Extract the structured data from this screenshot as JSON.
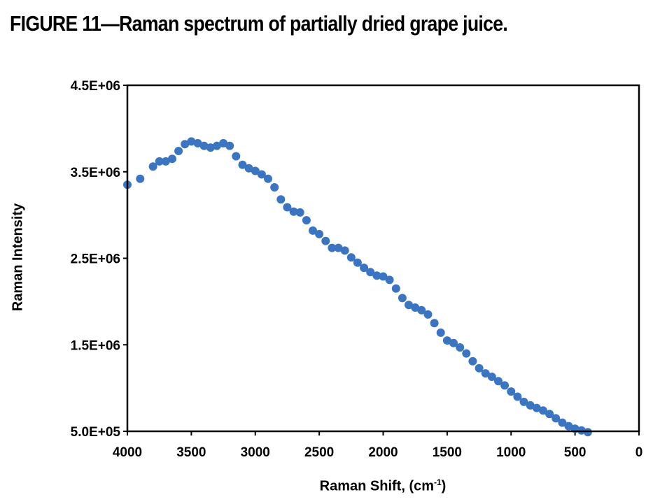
{
  "figure_title": "FIGURE 11—Raman spectrum of partially dried grape juice.",
  "chart_data": {
    "type": "scatter",
    "title": "FIGURE 11—Raman spectrum of partially dried grape juice.",
    "xlabel": "Raman Shift, (cm-1)",
    "xlabel_main": "Raman Shift, (cm",
    "xlabel_sup": "-1",
    "xlabel_close": ")",
    "ylabel": "Raman Intensity",
    "xlim": [
      4000,
      0
    ],
    "ylim": [
      500000,
      4500000
    ],
    "x_axis_reversed": true,
    "grid": false,
    "marker_color": "#3a75c4",
    "x_ticks": [
      "4000",
      "3500",
      "3000",
      "2500",
      "2000",
      "1500",
      "1000",
      "500",
      "0"
    ],
    "x_tick_values": [
      4000,
      3500,
      3000,
      2500,
      2000,
      1500,
      1000,
      500,
      0
    ],
    "y_ticks": [
      "5.0E+05",
      "1.5E+06",
      "2.5E+06",
      "3.5E+06",
      "4.5E+06"
    ],
    "y_tick_values": [
      500000,
      1500000,
      2500000,
      3500000,
      4500000
    ],
    "series": [
      {
        "x": [
          4000,
          3900,
          3800,
          3750,
          3700,
          3650,
          3600,
          3550,
          3500,
          3450,
          3400,
          3350,
          3300,
          3250,
          3200,
          3150,
          3100,
          3050,
          3000,
          2950,
          2900,
          2850,
          2800,
          2750,
          2700,
          2650,
          2600,
          2550,
          2500,
          2450,
          2400,
          2350,
          2300,
          2250,
          2200,
          2150,
          2100,
          2050,
          2000,
          1950,
          1900,
          1850,
          1800,
          1750,
          1700,
          1650,
          1600,
          1550,
          1500,
          1450,
          1400,
          1350,
          1300,
          1250,
          1200,
          1150,
          1100,
          1050,
          1000,
          950,
          900,
          850,
          800,
          750,
          700,
          650,
          600,
          550,
          500,
          450,
          400
        ],
        "y": [
          3350000,
          3420000,
          3560000,
          3620000,
          3620000,
          3650000,
          3740000,
          3820000,
          3850000,
          3830000,
          3800000,
          3780000,
          3800000,
          3830000,
          3800000,
          3680000,
          3580000,
          3540000,
          3510000,
          3470000,
          3420000,
          3320000,
          3180000,
          3090000,
          3040000,
          3030000,
          2940000,
          2820000,
          2780000,
          2700000,
          2620000,
          2620000,
          2590000,
          2510000,
          2450000,
          2390000,
          2340000,
          2300000,
          2290000,
          2250000,
          2150000,
          2040000,
          1960000,
          1930000,
          1900000,
          1850000,
          1750000,
          1640000,
          1550000,
          1520000,
          1470000,
          1400000,
          1310000,
          1230000,
          1170000,
          1130000,
          1080000,
          1030000,
          960000,
          900000,
          840000,
          800000,
          770000,
          740000,
          700000,
          650000,
          600000,
          560000,
          530000,
          510000,
          490000
        ]
      }
    ]
  }
}
